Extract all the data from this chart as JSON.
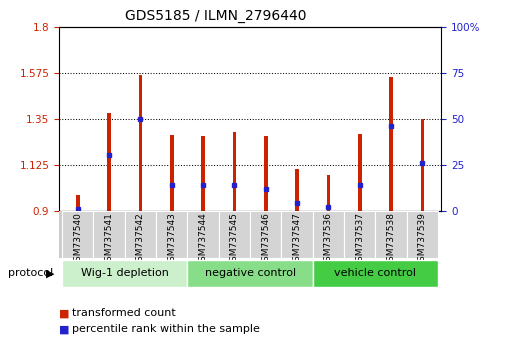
{
  "title": "GDS5185 / ILMN_2796440",
  "samples": [
    "GSM737540",
    "GSM737541",
    "GSM737542",
    "GSM737543",
    "GSM737544",
    "GSM737545",
    "GSM737546",
    "GSM737547",
    "GSM737536",
    "GSM737537",
    "GSM737538",
    "GSM737539"
  ],
  "transformed_count": [
    0.975,
    1.375,
    1.565,
    1.27,
    1.265,
    1.285,
    1.265,
    1.105,
    1.075,
    1.275,
    1.555,
    1.35
  ],
  "percentile_rank": [
    1,
    30,
    50,
    14,
    14,
    14,
    12,
    4,
    2,
    14,
    46,
    26
  ],
  "groups": [
    {
      "label": "Wig-1 depletion",
      "indices": [
        0,
        1,
        2,
        3
      ],
      "color": "#ccf0cc"
    },
    {
      "label": "negative control",
      "indices": [
        4,
        5,
        6,
        7
      ],
      "color": "#88dd88"
    },
    {
      "label": "vehicle control",
      "indices": [
        8,
        9,
        10,
        11
      ],
      "color": "#44cc44"
    }
  ],
  "ymin": 0.9,
  "ymax": 1.8,
  "yticks_left": [
    0.9,
    1.125,
    1.35,
    1.575,
    1.8
  ],
  "ytick_labels_left": [
    "0.9",
    "1.125",
    "1.35",
    "1.575",
    "1.8"
  ],
  "yticks_right": [
    0,
    25,
    50,
    75,
    100
  ],
  "ytick_labels_right": [
    "0",
    "25",
    "50",
    "75",
    "100%"
  ],
  "bar_color": "#cc2200",
  "dot_color": "#2222cc",
  "bar_width": 0.12,
  "left_label_color": "#cc2200",
  "right_label_color": "#2222cc",
  "legend_items": [
    {
      "label": "transformed count",
      "color": "#cc2200"
    },
    {
      "label": "percentile rank within the sample",
      "color": "#2222cc"
    }
  ],
  "xlabel_group": "protocol"
}
